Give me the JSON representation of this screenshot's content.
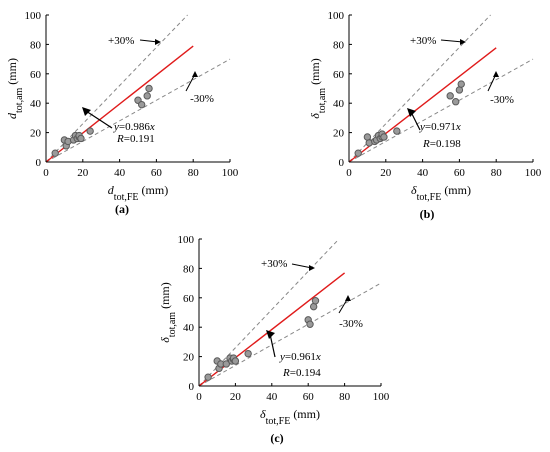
{
  "chart_data": [
    {
      "type": "scatter",
      "panel_label": "(a)",
      "xlabel": {
        "base": "d",
        "sub": "tot,FE",
        "unit": " (mm)",
        "italic": true
      },
      "ylabel": {
        "base": "d",
        "sub": "tot,am",
        "unit": " (mm)",
        "italic": true
      },
      "xlim": [
        0,
        100
      ],
      "ylim": [
        0,
        100
      ],
      "x_ticks": [
        0,
        20,
        40,
        60,
        80,
        100
      ],
      "y_ticks": [
        0,
        20,
        40,
        60,
        80,
        100
      ],
      "grid": false,
      "series": [
        {
          "kind": "points",
          "x": [
            5,
            10,
            11,
            12,
            15,
            16,
            17,
            18,
            18,
            19,
            24,
            50,
            52,
            55,
            56
          ],
          "y": [
            6,
            15,
            11,
            14,
            15,
            18,
            16,
            17,
            18,
            16,
            21,
            42,
            39,
            45,
            50
          ]
        },
        {
          "kind": "fit",
          "slope": 0.986,
          "x_range": [
            0,
            80
          ]
        },
        {
          "kind": "band_upper",
          "slope": 1.3
        },
        {
          "kind": "band_lower",
          "slope": 0.7
        }
      ],
      "annotations": {
        "upper": "+30%",
        "lower": "-30%",
        "eq_lhs": "y",
        "eq_mid": "=0.986",
        "eq_rhs": "x",
        "r_lhs": "R",
        "r_rhs": "=0.191"
      }
    },
    {
      "type": "scatter",
      "panel_label": "(b)",
      "xlabel": {
        "base": "δ",
        "sub": "tot,FE",
        "unit": " (mm)",
        "italic": true
      },
      "ylabel": {
        "base": "δ",
        "sub": "tot,am",
        "unit": " (mm)",
        "italic": true
      },
      "xlim": [
        0,
        100
      ],
      "ylim": [
        0,
        100
      ],
      "x_ticks": [
        0,
        20,
        40,
        60,
        80,
        100
      ],
      "y_ticks": [
        0,
        20,
        40,
        60,
        80,
        100
      ],
      "grid": false,
      "series": [
        {
          "kind": "points",
          "x": [
            5,
            10,
            11,
            14,
            15,
            16,
            17,
            18,
            18,
            19,
            26,
            55,
            58,
            60,
            61
          ],
          "y": [
            6,
            17,
            13,
            14,
            15,
            18,
            16,
            17,
            19,
            17,
            21,
            45,
            41,
            49,
            53
          ]
        },
        {
          "kind": "fit",
          "slope": 0.971,
          "x_range": [
            0,
            80
          ]
        },
        {
          "kind": "band_upper",
          "slope": 1.3
        },
        {
          "kind": "band_lower",
          "slope": 0.7
        }
      ],
      "annotations": {
        "upper": "+30%",
        "lower": "-30%",
        "eq_lhs": "y",
        "eq_mid": "=0.971",
        "eq_rhs": "x",
        "r_lhs": "R",
        "r_rhs": "=0.198"
      }
    },
    {
      "type": "scatter",
      "panel_label": "(c)",
      "xlabel": {
        "base": "δ",
        "sub": "tot,FE",
        "unit": " (mm)",
        "italic": true
      },
      "ylabel": {
        "base": "δ",
        "sub": "tot,am",
        "unit": " (mm)",
        "italic": true
      },
      "xlim": [
        0,
        100
      ],
      "ylim": [
        0,
        100
      ],
      "x_ticks": [
        0,
        20,
        40,
        60,
        80,
        100
      ],
      "y_ticks": [
        0,
        20,
        40,
        60,
        80,
        100
      ],
      "grid": false,
      "series": [
        {
          "kind": "points",
          "x": [
            5,
            10,
            11,
            12,
            15,
            17,
            18,
            19,
            19,
            20,
            27,
            60,
            61,
            63,
            64
          ],
          "y": [
            6,
            17,
            12,
            15,
            15,
            19,
            17,
            18,
            19,
            17,
            22,
            45,
            42,
            54,
            58
          ]
        },
        {
          "kind": "fit",
          "slope": 0.961,
          "x_range": [
            0,
            80
          ]
        },
        {
          "kind": "band_upper",
          "slope": 1.3
        },
        {
          "kind": "band_lower",
          "slope": 0.7
        }
      ],
      "annotations": {
        "upper": "+30%",
        "lower": "-30%",
        "eq_lhs": "y",
        "eq_mid": "=0.961",
        "eq_rhs": "x",
        "r_lhs": "R",
        "r_rhs": "=0.194"
      }
    }
  ],
  "colors": {
    "fit_line": "#e01b1b",
    "band": "#888888",
    "marker_fill": "#9a9a9a",
    "marker_edge": "#5a5a5a",
    "axis": "#000000"
  }
}
